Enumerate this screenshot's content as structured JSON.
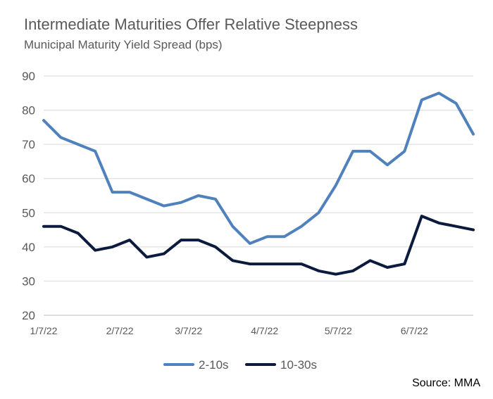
{
  "title": "Intermediate Maturities Offer Relative Steepness",
  "subtitle": "Municipal Maturity Yield Spread (bps)",
  "source": "Source: MMA",
  "chart_data": {
    "type": "line",
    "ylim": [
      20,
      90
    ],
    "yticks": [
      20,
      30,
      40,
      50,
      60,
      70,
      80,
      90
    ],
    "grid": true,
    "legend_position": "bottom",
    "xlim": [
      "2022-01-07",
      "2022-07-01"
    ],
    "xtick_labels": [
      "1/7/22",
      "2/7/22",
      "3/7/22",
      "4/7/22",
      "5/7/22",
      "6/7/22"
    ],
    "xtick_dates": [
      "2022-01-07",
      "2022-02-07",
      "2022-03-07",
      "2022-04-07",
      "2022-05-07",
      "2022-06-07"
    ],
    "x": [
      "2022-01-07",
      "2022-01-14",
      "2022-01-21",
      "2022-01-28",
      "2022-02-04",
      "2022-02-11",
      "2022-02-18",
      "2022-02-25",
      "2022-03-04",
      "2022-03-11",
      "2022-03-18",
      "2022-03-25",
      "2022-04-01",
      "2022-04-08",
      "2022-04-15",
      "2022-04-22",
      "2022-04-29",
      "2022-05-06",
      "2022-05-13",
      "2022-05-20",
      "2022-05-27",
      "2022-06-03",
      "2022-06-10",
      "2022-06-17",
      "2022-06-24",
      "2022-07-01"
    ],
    "series": [
      {
        "name": "2-10s",
        "color": "#4f81bd",
        "values": [
          77,
          72,
          70,
          68,
          56,
          56,
          54,
          52,
          53,
          55,
          54,
          46,
          41,
          43,
          43,
          46,
          50,
          58,
          68,
          68,
          64,
          68,
          83,
          85,
          82,
          73
        ]
      },
      {
        "name": "10-30s",
        "color": "#0c1a3d",
        "values": [
          46,
          46,
          44,
          39,
          40,
          42,
          37,
          38,
          42,
          42,
          40,
          36,
          35,
          35,
          35,
          35,
          33,
          32,
          33,
          36,
          34,
          35,
          49,
          47,
          46,
          45
        ]
      }
    ]
  }
}
